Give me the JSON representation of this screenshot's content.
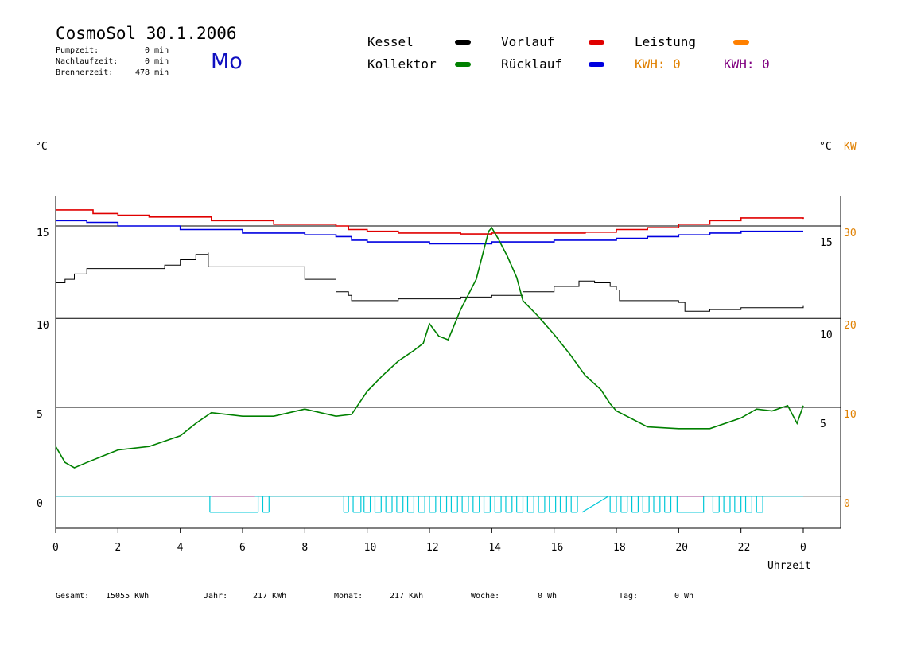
{
  "header": {
    "title": "CosmoSol 30.1.2006",
    "day": "Mo",
    "stats": [
      {
        "label": "Pumpzeit:",
        "value": "0 min"
      },
      {
        "label": "Nachlaufzeit:",
        "value": "0 min"
      },
      {
        "label": "Brennerzeit:",
        "value": "478 min"
      }
    ]
  },
  "legend": {
    "items": [
      {
        "label": "Kessel",
        "color": "#000000"
      },
      {
        "label": "Kollektor",
        "color": "#008000"
      },
      {
        "label": "Vorlauf",
        "color": "#e00000"
      },
      {
        "label": "Rücklauf",
        "color": "#0000e0"
      },
      {
        "label": "Leistung",
        "color": "#ff8000"
      }
    ],
    "kwh": [
      {
        "label": "KWH: 0",
        "color": "#e08000"
      },
      {
        "label": "KWH: 0",
        "color": "#800080"
      }
    ]
  },
  "footer": [
    {
      "label": "Gesamt:",
      "value": "15055 KWh"
    },
    {
      "label": "Jahr:",
      "value": "217 KWh"
    },
    {
      "label": "Monat:",
      "value": "217 KWh"
    },
    {
      "label": "Woche:",
      "value": "0 Wh"
    },
    {
      "label": "Tag:",
      "value": "0 Wh"
    }
  ],
  "chart_data": {
    "type": "line",
    "xlabel": "Uhrzeit",
    "x_ticks": [
      "0",
      "2",
      "4",
      "6",
      "8",
      "10",
      "12",
      "14",
      "16",
      "18",
      "20",
      "22",
      "0"
    ],
    "xlim": [
      0,
      24
    ],
    "left_axis": {
      "unit": "°C",
      "ticks": [
        "0",
        "5",
        "10",
        "15"
      ],
      "ylim": [
        -1.8,
        16.9
      ]
    },
    "right_axis": {
      "unit": "°C",
      "unit2": "KW",
      "ticks_c": [
        "5",
        "10",
        "15"
      ],
      "ticks_kw": [
        "0",
        "10",
        "20",
        "30"
      ]
    },
    "grid_y": [
      0,
      5,
      10,
      15.2
    ],
    "series": [
      {
        "name": "Vorlauf",
        "color": "#e00000",
        "x": [
          0,
          1.2,
          2.0,
          3.0,
          5.0,
          7.0,
          9.0,
          9.4,
          10.0,
          11.0,
          12.0,
          13.0,
          14.0,
          15.0,
          16.0,
          17.0,
          18.0,
          19.0,
          20.0,
          21.0,
          22.0,
          23.0,
          24.0
        ],
        "y": [
          16.1,
          15.9,
          15.8,
          15.7,
          15.5,
          15.3,
          15.2,
          15.0,
          14.9,
          14.8,
          14.8,
          14.75,
          14.8,
          14.8,
          14.8,
          14.85,
          15.0,
          15.1,
          15.3,
          15.5,
          15.65,
          15.65,
          15.6
        ]
      },
      {
        "name": "Rücklauf",
        "color": "#0000e0",
        "x": [
          0,
          1.0,
          2.0,
          4.0,
          6.0,
          8.0,
          9.0,
          9.5,
          10.0,
          12.0,
          13.0,
          14.0,
          15.0,
          16.0,
          17.0,
          18.0,
          19.0,
          20.0,
          21.0,
          22.0,
          24.0
        ],
        "y": [
          15.5,
          15.4,
          15.2,
          15.0,
          14.8,
          14.7,
          14.6,
          14.4,
          14.3,
          14.2,
          14.2,
          14.3,
          14.3,
          14.4,
          14.4,
          14.5,
          14.6,
          14.7,
          14.8,
          14.9,
          14.9
        ]
      },
      {
        "name": "Kessel",
        "color": "#000000",
        "x": [
          0,
          0.3,
          0.6,
          1.0,
          2.0,
          3.0,
          3.5,
          4.0,
          4.5,
          4.9,
          4.9,
          6.0,
          7.0,
          8.0,
          9.0,
          9.4,
          9.5,
          10.0,
          11.0,
          12.0,
          13.0,
          14.0,
          15.0,
          16.0,
          16.8,
          17.3,
          17.8,
          18.0,
          18.1,
          19.0,
          20.0,
          20.2,
          21.0,
          22.0,
          23.0,
          24.0
        ],
        "y": [
          12.0,
          12.2,
          12.5,
          12.8,
          12.8,
          12.8,
          13.0,
          13.3,
          13.6,
          13.7,
          12.9,
          12.9,
          12.9,
          12.2,
          11.5,
          11.3,
          11.0,
          11.0,
          11.1,
          11.1,
          11.2,
          11.3,
          11.5,
          11.8,
          12.1,
          12.0,
          11.8,
          11.6,
          11.0,
          11.0,
          10.9,
          10.4,
          10.5,
          10.6,
          10.6,
          10.7
        ]
      },
      {
        "name": "Kollektor",
        "color": "#008000",
        "x": [
          0,
          0.3,
          0.6,
          1.0,
          2.0,
          3.0,
          3.5,
          4.0,
          4.5,
          5.0,
          6.0,
          7.0,
          8.0,
          9.0,
          9.5,
          10.0,
          10.5,
          11.0,
          11.5,
          11.8,
          12.0,
          12.3,
          12.6,
          13.0,
          13.5,
          13.9,
          14.0,
          14.2,
          14.5,
          14.8,
          15.0,
          15.5,
          16.0,
          16.5,
          17.0,
          17.5,
          17.8,
          18.0,
          19.0,
          20.0,
          21.0,
          22.0,
          22.5,
          23.0,
          23.5,
          23.8,
          24.0
        ],
        "y": [
          2.8,
          1.9,
          1.6,
          1.9,
          2.6,
          2.8,
          3.1,
          3.4,
          4.1,
          4.7,
          4.5,
          4.5,
          4.9,
          4.5,
          4.6,
          5.9,
          6.8,
          7.6,
          8.2,
          8.6,
          9.7,
          9.0,
          8.8,
          10.5,
          12.2,
          14.9,
          15.1,
          14.5,
          13.5,
          12.3,
          11.0,
          10.1,
          9.1,
          8.0,
          6.8,
          6.0,
          5.2,
          4.8,
          3.9,
          3.8,
          3.8,
          4.4,
          4.9,
          4.8,
          5.1,
          4.1,
          5.1
        ]
      }
    ],
    "burner_segments": [
      [
        4.95,
        6.5
      ],
      [
        6.65,
        6.85
      ],
      [
        9.25,
        9.4
      ],
      [
        9.55,
        9.8
      ],
      [
        9.9,
        10.1
      ],
      [
        10.25,
        10.45
      ],
      [
        10.6,
        10.8
      ],
      [
        10.95,
        11.15
      ],
      [
        11.3,
        11.5
      ],
      [
        11.65,
        11.85
      ],
      [
        12.0,
        12.2
      ],
      [
        12.35,
        12.55
      ],
      [
        12.7,
        12.9
      ],
      [
        13.05,
        13.25
      ],
      [
        13.4,
        13.6
      ],
      [
        13.75,
        13.95
      ],
      [
        14.1,
        14.3
      ],
      [
        14.45,
        14.65
      ],
      [
        14.8,
        15.0
      ],
      [
        15.15,
        15.35
      ],
      [
        15.5,
        15.7
      ],
      [
        15.85,
        16.05
      ],
      [
        16.2,
        16.4
      ],
      [
        16.55,
        16.75
      ],
      [
        17.8,
        18.0
      ],
      [
        18.15,
        18.35
      ],
      [
        18.5,
        18.7
      ],
      [
        18.85,
        19.05
      ],
      [
        19.2,
        19.4
      ],
      [
        19.55,
        19.75
      ],
      [
        21.1,
        21.3
      ],
      [
        21.45,
        21.65
      ],
      [
        21.8,
        22.0
      ],
      [
        22.15,
        22.35
      ],
      [
        22.5,
        22.7
      ]
    ],
    "burner_long": [
      [
        19.95,
        20.8
      ]
    ],
    "legend_placement": "top"
  }
}
